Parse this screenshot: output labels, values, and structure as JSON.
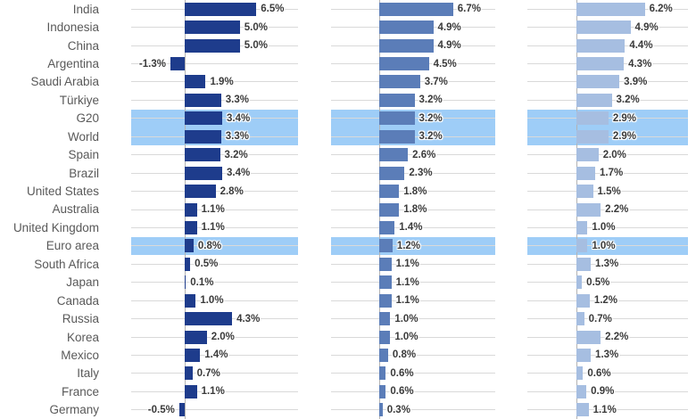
{
  "chart_data": {
    "type": "bar",
    "orientation": "horizontal",
    "title": "",
    "value_suffix": "%",
    "value_decimals": 1,
    "grid": true,
    "axis_range": [
      -4.8,
      10.5
    ],
    "categories": [
      "India",
      "Indonesia",
      "China",
      "Argentina",
      "Saudi Arabia",
      "Türkiye",
      "G20",
      "World",
      "Spain",
      "Brazil",
      "United States",
      "Australia",
      "United Kingdom",
      "Euro area",
      "South Africa",
      "Japan",
      "Canada",
      "Russia",
      "Korea",
      "Mexico",
      "Italy",
      "France",
      "Germany"
    ],
    "highlighted_categories": [
      "G20",
      "World",
      "Euro area"
    ],
    "series": [
      {
        "name": "left-panel",
        "color": "#1e3c8c",
        "values": [
          6.5,
          5.0,
          5.0,
          -1.3,
          1.9,
          3.3,
          3.4,
          3.3,
          3.2,
          3.4,
          2.8,
          1.1,
          1.1,
          0.8,
          0.5,
          0.1,
          1.0,
          4.3,
          2.0,
          1.4,
          0.7,
          1.1,
          -0.5
        ]
      },
      {
        "name": "middle-panel",
        "color": "#5b7db8",
        "values": [
          6.7,
          4.9,
          4.9,
          4.5,
          3.7,
          3.2,
          3.2,
          3.2,
          2.6,
          2.3,
          1.8,
          1.8,
          1.4,
          1.2,
          1.1,
          1.1,
          1.1,
          1.0,
          1.0,
          0.8,
          0.6,
          0.6,
          0.3
        ]
      },
      {
        "name": "right-panel",
        "color": "#a6bee1",
        "values": [
          6.2,
          4.9,
          4.4,
          4.3,
          3.9,
          3.2,
          2.9,
          2.9,
          2.0,
          1.7,
          1.5,
          2.2,
          1.0,
          1.0,
          1.3,
          0.5,
          1.2,
          0.7,
          2.2,
          1.3,
          0.6,
          0.9,
          1.1
        ]
      }
    ],
    "colors": {
      "highlight_band": "#9ecdf7",
      "gridline": "#d9d9d9",
      "axis_line": "#b3b3b3",
      "category_label": "#595959",
      "value_label": "#3a3a3a",
      "background": "#ffffff"
    }
  }
}
